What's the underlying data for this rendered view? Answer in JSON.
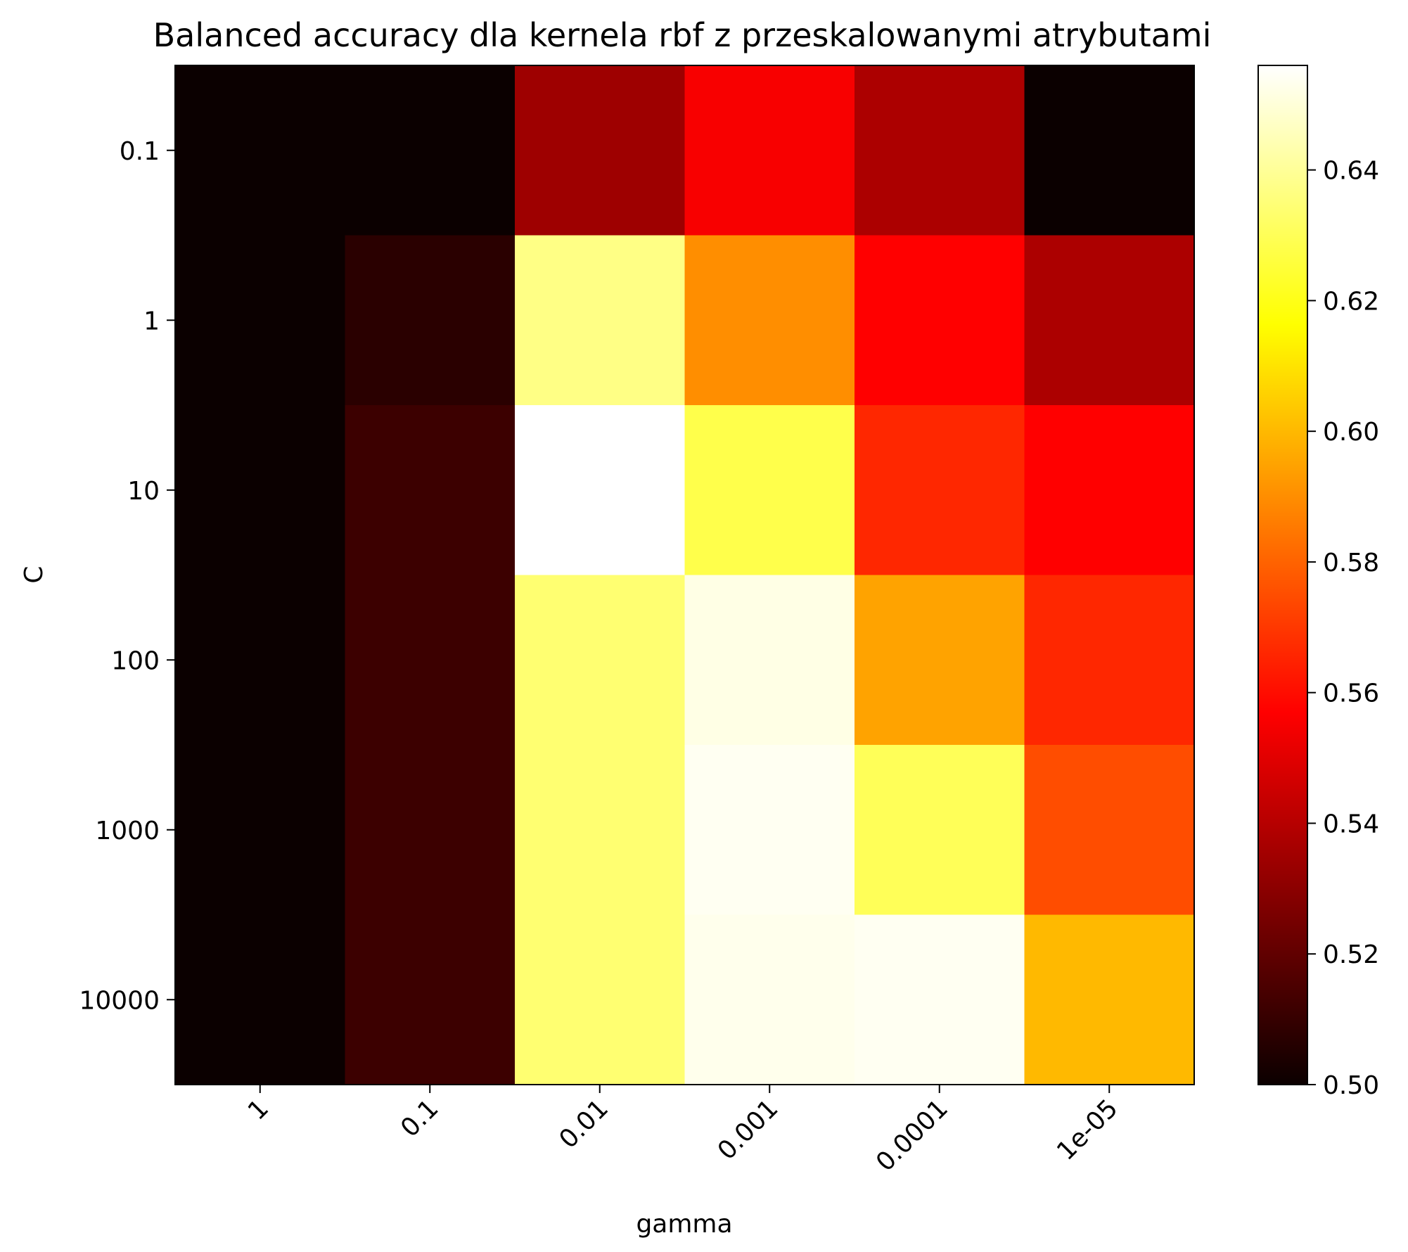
{
  "chart_data": {
    "type": "heatmap",
    "title": "Balanced accuracy dla kernela rbf z przeskalowanymi atrybutami",
    "xlabel": "gamma",
    "ylabel": "C",
    "x_categories": [
      "1",
      "0.1",
      "0.01",
      "0.001",
      "0.0001",
      "1e-05"
    ],
    "y_categories": [
      "0.1",
      "1",
      "10",
      "100",
      "1000",
      "10000"
    ],
    "values": [
      [
        0.5,
        0.5,
        0.533,
        0.553,
        0.536,
        0.5
      ],
      [
        0.5,
        0.507,
        0.637,
        0.59,
        0.555,
        0.536
      ],
      [
        0.5,
        0.511,
        0.656,
        0.628,
        0.566,
        0.555
      ],
      [
        0.5,
        0.511,
        0.634,
        0.652,
        0.595,
        0.566
      ],
      [
        0.5,
        0.511,
        0.634,
        0.654,
        0.63,
        0.575
      ],
      [
        0.5,
        0.511,
        0.634,
        0.653,
        0.654,
        0.6
      ]
    ],
    "colormap": "hot",
    "colorbar": {
      "vmin": 0.5,
      "vmax": 0.656,
      "ticks": [
        "0.50",
        "0.52",
        "0.54",
        "0.56",
        "0.58",
        "0.60",
        "0.62",
        "0.64"
      ],
      "tick_values": [
        0.5,
        0.52,
        0.54,
        0.56,
        0.58,
        0.6,
        0.62,
        0.64
      ]
    },
    "grid": false,
    "legend": "none"
  }
}
